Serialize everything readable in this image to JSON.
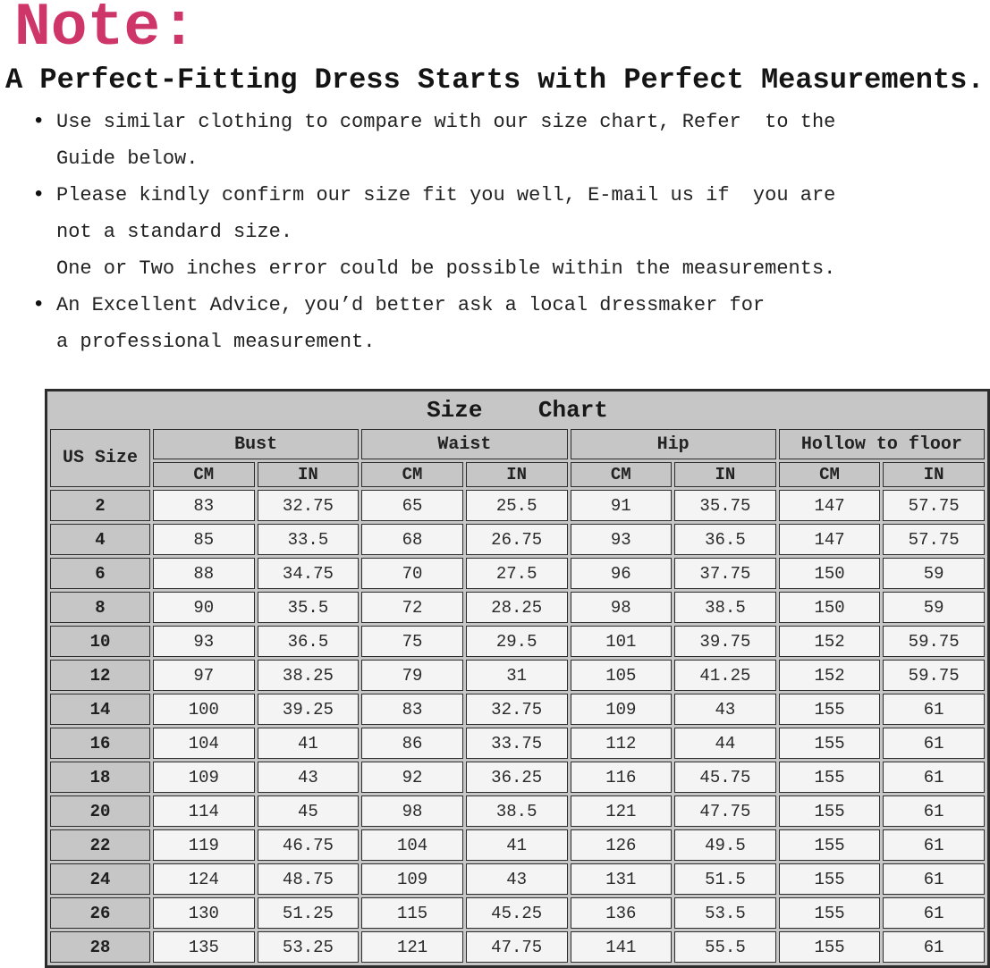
{
  "note_label": "Note:",
  "headline": "A Perfect-Fitting Dress Starts with Perfect Measurements.",
  "bullets": [
    {
      "lines": [
        "Use similar clothing to compare with our size chart, Refer  to the",
        "Guide below."
      ]
    },
    {
      "lines": [
        "Please kindly confirm our size fit you well, E-mail us if  you are",
        "not a standard size.",
        "One or Two inches error could be possible within the measurements."
      ]
    },
    {
      "lines": [
        "An Excellent Advice, you’d better ask a local dressmaker for",
        "a professional measurement."
      ]
    }
  ],
  "colors": {
    "note_pink": "#ce3568",
    "text_black": "#1f1f1f",
    "table_gray": "#c6c6c6",
    "cell_white": "#f4f4f4",
    "border_dark": "#2c2c2c"
  },
  "chart_data": {
    "type": "table",
    "title": "Size    Chart",
    "row_header": "US Size",
    "groups": [
      {
        "label": "Bust"
      },
      {
        "label": "Waist"
      },
      {
        "label": "Hip"
      },
      {
        "label": "Hollow to floor"
      }
    ],
    "unit_headers": [
      "CM",
      "IN"
    ],
    "rows": [
      {
        "us_size": "2",
        "values": [
          "83",
          "32.75",
          "65",
          "25.5",
          "91",
          "35.75",
          "147",
          "57.75"
        ]
      },
      {
        "us_size": "4",
        "values": [
          "85",
          "33.5",
          "68",
          "26.75",
          "93",
          "36.5",
          "147",
          "57.75"
        ]
      },
      {
        "us_size": "6",
        "values": [
          "88",
          "34.75",
          "70",
          "27.5",
          "96",
          "37.75",
          "150",
          "59"
        ]
      },
      {
        "us_size": "8",
        "values": [
          "90",
          "35.5",
          "72",
          "28.25",
          "98",
          "38.5",
          "150",
          "59"
        ]
      },
      {
        "us_size": "10",
        "values": [
          "93",
          "36.5",
          "75",
          "29.5",
          "101",
          "39.75",
          "152",
          "59.75"
        ]
      },
      {
        "us_size": "12",
        "values": [
          "97",
          "38.25",
          "79",
          "31",
          "105",
          "41.25",
          "152",
          "59.75"
        ]
      },
      {
        "us_size": "14",
        "values": [
          "100",
          "39.25",
          "83",
          "32.75",
          "109",
          "43",
          "155",
          "61"
        ]
      },
      {
        "us_size": "16",
        "values": [
          "104",
          "41",
          "86",
          "33.75",
          "112",
          "44",
          "155",
          "61"
        ]
      },
      {
        "us_size": "18",
        "values": [
          "109",
          "43",
          "92",
          "36.25",
          "116",
          "45.75",
          "155",
          "61"
        ]
      },
      {
        "us_size": "20",
        "values": [
          "114",
          "45",
          "98",
          "38.5",
          "121",
          "47.75",
          "155",
          "61"
        ]
      },
      {
        "us_size": "22",
        "values": [
          "119",
          "46.75",
          "104",
          "41",
          "126",
          "49.5",
          "155",
          "61"
        ]
      },
      {
        "us_size": "24",
        "values": [
          "124",
          "48.75",
          "109",
          "43",
          "131",
          "51.5",
          "155",
          "61"
        ]
      },
      {
        "us_size": "26",
        "values": [
          "130",
          "51.25",
          "115",
          "45.25",
          "136",
          "53.5",
          "155",
          "61"
        ]
      },
      {
        "us_size": "28",
        "values": [
          "135",
          "53.25",
          "121",
          "47.75",
          "141",
          "55.5",
          "155",
          "61"
        ]
      }
    ]
  }
}
